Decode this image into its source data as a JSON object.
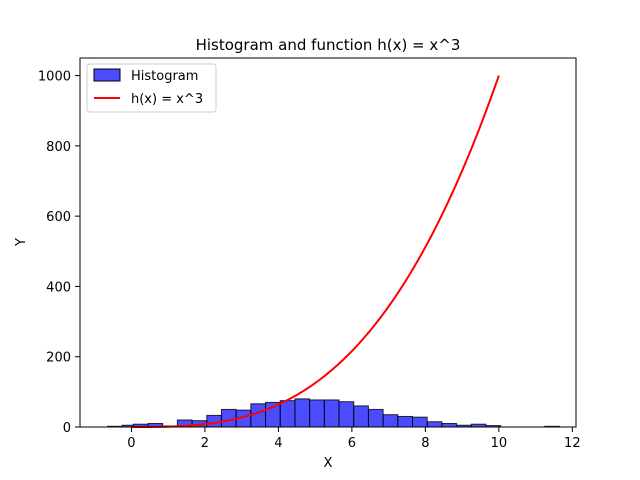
{
  "chart_data": {
    "type": "bar+line",
    "title": "Histogram and function h(x) = x^3",
    "xlabel": "X",
    "ylabel": "Y",
    "xlim": [
      -1.4,
      12.1
    ],
    "ylim": [
      0,
      1050
    ],
    "xticks": [
      0,
      2,
      4,
      6,
      8,
      10,
      12
    ],
    "yticks": [
      0,
      200,
      400,
      600,
      800,
      1000
    ],
    "grid": false,
    "legend": {
      "placement": "top-left",
      "entries": [
        "Histogram",
        "h(x) = x^3"
      ]
    },
    "histogram": {
      "name": "Histogram",
      "color": "#0000ff",
      "edge_color": "#000000",
      "alpha": 0.7,
      "bin_edges": [
        -0.65,
        -0.25,
        0.05,
        0.45,
        0.85,
        1.25,
        1.65,
        2.05,
        2.45,
        2.85,
        3.25,
        3.65,
        4.05,
        4.45,
        4.85,
        5.25,
        5.65,
        6.05,
        6.45,
        6.85,
        7.25,
        7.65,
        8.05,
        8.45,
        8.85,
        9.25,
        9.65,
        10.05,
        10.45,
        10.85,
        11.25,
        11.65
      ],
      "counts": [
        2,
        5,
        8,
        10,
        3,
        20,
        18,
        33,
        50,
        48,
        66,
        70,
        75,
        80,
        77,
        77,
        72,
        60,
        50,
        35,
        30,
        28,
        15,
        10,
        5,
        8,
        4,
        0,
        0,
        0,
        2
      ]
    },
    "series": [
      {
        "name": "h(x) = x^3",
        "type": "line",
        "color": "#ff0000",
        "function": "x^3",
        "x_range": [
          0,
          10
        ]
      }
    ]
  }
}
